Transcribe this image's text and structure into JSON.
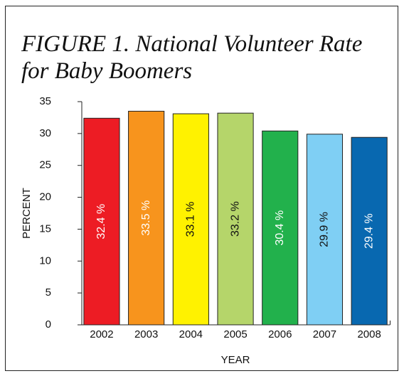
{
  "chart_data": {
    "type": "bar",
    "title": [
      "FIGURE 1. National Volunteer Rate",
      "for Baby Boomers"
    ],
    "x_label": "YEAR",
    "y_label": "PERCENT",
    "categories": [
      "2002",
      "2003",
      "2004",
      "2005",
      "2006",
      "2007",
      "2008"
    ],
    "values": [
      32.4,
      33.5,
      33.1,
      33.2,
      30.4,
      29.9,
      29.4
    ],
    "value_labels": [
      "32.4 %",
      "33.5 %",
      "33.1 %",
      "33.2 %",
      "30.4 %",
      "29.9 %",
      "29.4 %"
    ],
    "colors": [
      "#ed1c24",
      "#f7941d",
      "#fff200",
      "#b5d56a",
      "#22b14c",
      "#7fcff4",
      "#0868b0"
    ],
    "label_colors": [
      "#ffffff",
      "#ffffff",
      "#111111",
      "#111111",
      "#ffffff",
      "#111111",
      "#ffffff"
    ],
    "ylim": [
      0,
      35
    ],
    "yticks": [
      0,
      5,
      10,
      15,
      20,
      25,
      30,
      35
    ],
    "grid": false
  }
}
